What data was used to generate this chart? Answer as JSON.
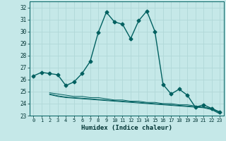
{
  "xlabel": "Humidex (Indice chaleur)",
  "bg_color": "#c5e8e8",
  "grid_color": "#b0d8d8",
  "line_color": "#006060",
  "xlim": [
    -0.5,
    23.5
  ],
  "ylim": [
    23,
    32.5
  ],
  "yticks": [
    23,
    24,
    25,
    26,
    27,
    28,
    29,
    30,
    31,
    32
  ],
  "xticks": [
    0,
    1,
    2,
    3,
    4,
    5,
    6,
    7,
    8,
    9,
    10,
    11,
    12,
    13,
    14,
    15,
    16,
    17,
    18,
    19,
    20,
    21,
    22,
    23
  ],
  "series": [
    {
      "x": [
        0,
        1,
        2,
        3,
        4,
        5,
        6,
        7,
        8,
        9,
        10,
        11,
        12,
        13,
        14,
        15,
        16,
        17,
        18,
        19,
        20,
        21,
        22,
        23
      ],
      "y": [
        26.3,
        26.6,
        26.5,
        26.4,
        25.5,
        25.8,
        26.5,
        27.5,
        29.9,
        31.6,
        30.8,
        30.6,
        29.4,
        30.9,
        31.7,
        30.0,
        25.6,
        24.8,
        25.2,
        24.7,
        23.7,
        23.9,
        23.6,
        23.3
      ],
      "marker": "D",
      "markersize": 2.5,
      "linewidth": 1.0
    },
    {
      "x": [
        2,
        3,
        4,
        5,
        6,
        7,
        8,
        9,
        10,
        11,
        12,
        13,
        14,
        15,
        16,
        17,
        18,
        19,
        20,
        21,
        22,
        23
      ],
      "y": [
        24.9,
        24.8,
        24.7,
        24.6,
        24.6,
        24.5,
        24.5,
        24.4,
        24.3,
        24.3,
        24.2,
        24.2,
        24.1,
        24.1,
        24.0,
        24.0,
        23.9,
        23.9,
        23.8,
        23.7,
        23.6,
        23.3
      ],
      "marker": null,
      "linewidth": 0.7
    },
    {
      "x": [
        2,
        3,
        4,
        5,
        6,
        7,
        8,
        9,
        10,
        11,
        12,
        13,
        14,
        15,
        16,
        17,
        18,
        19,
        20,
        21,
        22,
        23
      ],
      "y": [
        24.8,
        24.65,
        24.55,
        24.5,
        24.45,
        24.4,
        24.35,
        24.3,
        24.25,
        24.2,
        24.15,
        24.1,
        24.05,
        24.0,
        23.95,
        23.9,
        23.85,
        23.8,
        23.75,
        23.7,
        23.55,
        23.2
      ],
      "marker": null,
      "linewidth": 0.7
    },
    {
      "x": [
        2,
        3,
        4,
        5,
        6,
        7,
        8,
        9,
        10,
        11,
        12,
        13,
        14,
        15,
        16,
        17,
        18,
        19,
        20,
        21,
        22,
        23
      ],
      "y": [
        24.75,
        24.6,
        24.5,
        24.45,
        24.4,
        24.35,
        24.3,
        24.25,
        24.2,
        24.15,
        24.1,
        24.05,
        24.0,
        23.95,
        23.9,
        23.85,
        23.8,
        23.75,
        23.7,
        23.65,
        23.5,
        23.15
      ],
      "marker": null,
      "linewidth": 0.7
    }
  ]
}
